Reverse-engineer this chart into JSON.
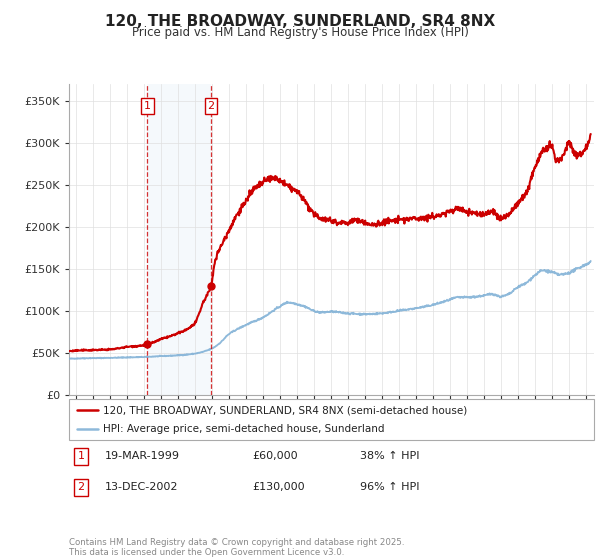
{
  "title": "120, THE BROADWAY, SUNDERLAND, SR4 8NX",
  "subtitle": "Price paid vs. HM Land Registry's House Price Index (HPI)",
  "legend_line1": "120, THE BROADWAY, SUNDERLAND, SR4 8NX (semi-detached house)",
  "legend_line2": "HPI: Average price, semi-detached house, Sunderland",
  "sale1_label": "1",
  "sale1_date": "19-MAR-1999",
  "sale1_price": "£60,000",
  "sale1_hpi": "38% ↑ HPI",
  "sale1_x": 1999.21,
  "sale1_y": 60000,
  "sale2_label": "2",
  "sale2_date": "13-DEC-2002",
  "sale2_price": "£130,000",
  "sale2_hpi": "96% ↑ HPI",
  "sale2_x": 2002.96,
  "sale2_y": 130000,
  "footer": "Contains HM Land Registry data © Crown copyright and database right 2025.\nThis data is licensed under the Open Government Licence v3.0.",
  "red_color": "#cc0000",
  "blue_color": "#7aadd4",
  "shade_color": "#daeaf7",
  "vline_color": "#cc0000",
  "ylim": [
    0,
    370000
  ],
  "xlim": [
    1994.6,
    2025.5
  ],
  "yticks": [
    0,
    50000,
    100000,
    150000,
    200000,
    250000,
    300000,
    350000
  ],
  "ytick_labels": [
    "£0",
    "£50K",
    "£100K",
    "£150K",
    "£200K",
    "£250K",
    "£300K",
    "£350K"
  ],
  "xticks": [
    1995,
    1996,
    1997,
    1998,
    1999,
    2000,
    2001,
    2002,
    2003,
    2004,
    2005,
    2006,
    2007,
    2008,
    2009,
    2010,
    2011,
    2012,
    2013,
    2014,
    2015,
    2016,
    2017,
    2018,
    2019,
    2020,
    2021,
    2022,
    2023,
    2024,
    2025
  ],
  "hpi_x": [
    1994.6,
    1995.5,
    1997,
    1998,
    1999,
    2000,
    2001,
    2002,
    2003,
    2003.5,
    2004,
    2005,
    2006,
    2007,
    2007.5,
    2008,
    2008.5,
    2009,
    2009.5,
    2010,
    2011,
    2012,
    2013,
    2014,
    2015,
    2016,
    2017,
    2017.5,
    2018,
    2019,
    2019.5,
    2020,
    2020.5,
    2021,
    2021.5,
    2022,
    2022.5,
    2023,
    2023.5,
    2024,
    2024.5,
    2025.3
  ],
  "hpi_y": [
    43000,
    43500,
    44000,
    44500,
    45000,
    46000,
    47000,
    49000,
    55000,
    62000,
    72000,
    83000,
    92000,
    105000,
    110000,
    108000,
    105000,
    100000,
    98000,
    99000,
    97000,
    96000,
    97000,
    100000,
    103000,
    107000,
    113000,
    116000,
    116000,
    118000,
    120000,
    117000,
    120000,
    128000,
    133000,
    142000,
    148000,
    146000,
    143000,
    145000,
    150000,
    158000
  ],
  "red_x": [
    1994.6,
    1995.5,
    1997,
    1998,
    1999.0,
    1999.21,
    1999.5,
    2000,
    2001,
    2002.0,
    2002.5,
    2002.96,
    2003.2,
    2003.5,
    2004,
    2004.5,
    2005,
    2005.5,
    2006,
    2006.5,
    2007,
    2007.5,
    2008,
    2008.5,
    2009,
    2009.5,
    2010,
    2010.5,
    2011,
    2011.5,
    2012,
    2012.5,
    2013,
    2014,
    2015,
    2016,
    2017,
    2017.5,
    2018,
    2019,
    2019.5,
    2020,
    2020.5,
    2021,
    2021.5,
    2022,
    2022.5,
    2023,
    2023.3,
    2023.7,
    2024,
    2024.5,
    2025.3
  ],
  "red_y": [
    52000,
    53000,
    54000,
    57000,
    59000,
    60000,
    62000,
    66000,
    73000,
    85000,
    110000,
    130000,
    160000,
    175000,
    195000,
    215000,
    230000,
    245000,
    252000,
    258000,
    255000,
    248000,
    242000,
    230000,
    215000,
    210000,
    208000,
    205000,
    205000,
    208000,
    205000,
    202000,
    205000,
    208000,
    210000,
    212000,
    218000,
    222000,
    218000,
    215000,
    218000,
    210000,
    215000,
    228000,
    240000,
    270000,
    290000,
    295000,
    278000,
    285000,
    300000,
    285000,
    310000
  ]
}
